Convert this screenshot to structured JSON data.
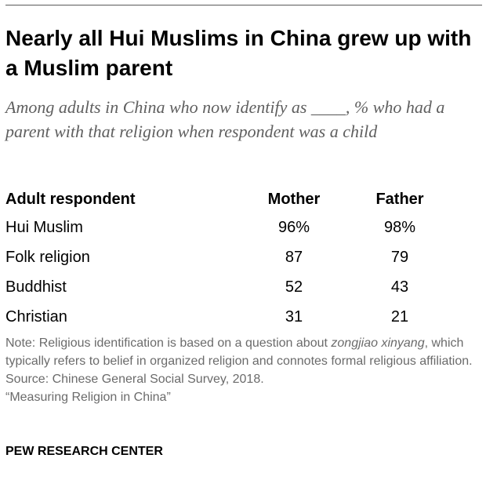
{
  "title": "Nearly all Hui Muslims in China grew up with a Muslim parent",
  "subtitle": "Among adults in China who now identify as ____, % who had a parent with that religion when respondent was a child",
  "table": {
    "headers": [
      "Adult respondent",
      "Mother",
      "Father"
    ],
    "rows": [
      [
        "Hui Muslim",
        "96%",
        "98%"
      ],
      [
        "Folk religion",
        "87",
        "79"
      ],
      [
        "Buddhist",
        "52",
        "43"
      ],
      [
        "Christian",
        "31",
        "21"
      ]
    ]
  },
  "note": {
    "prefix": "Note: Religious identification is based on a question about ",
    "term": "zongjiao xinyang",
    "suffix": ", which typically refers to belief in organized religion and connotes formal religious affiliation."
  },
  "source": "Source: Chinese General Social Survey, 2018.",
  "report": "“Measuring Religion in China”",
  "brand": "PEW RESEARCH CENTER",
  "colors": {
    "title": "#000000",
    "subtitle": "#5f5f5f",
    "note": "#6b6b6b",
    "rule": "#5a5a5a"
  }
}
